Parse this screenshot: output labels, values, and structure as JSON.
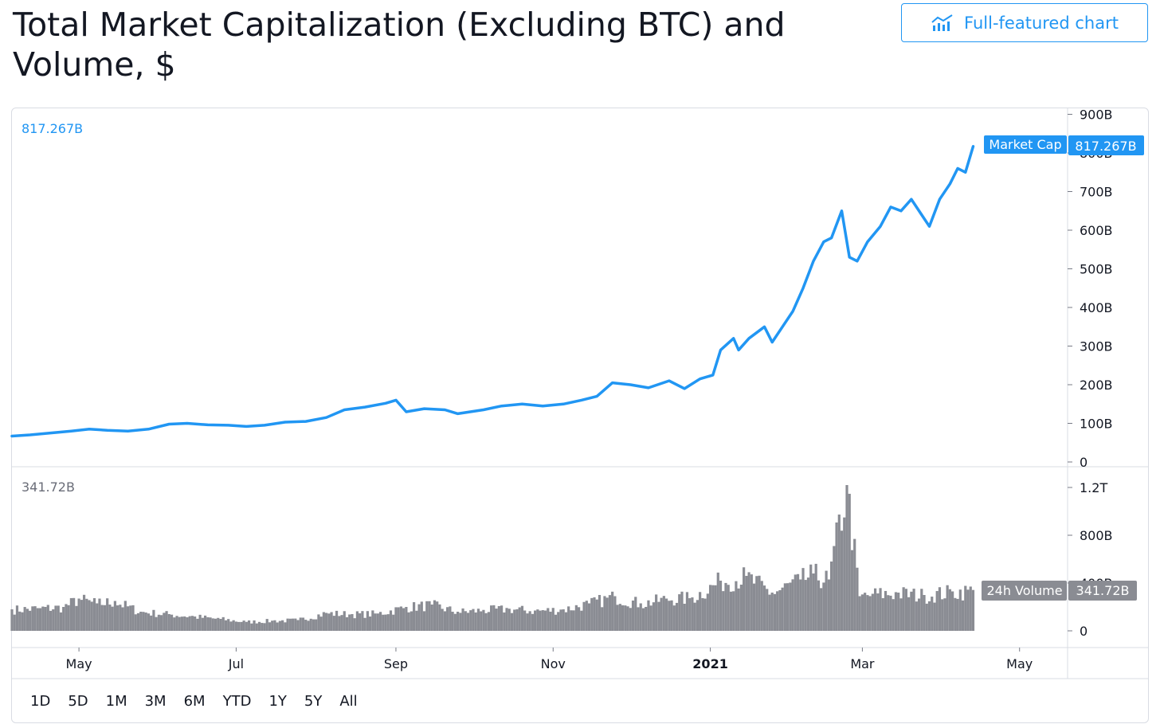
{
  "header": {
    "title": "Total Market Capitalization (Excluding BTC) and Volume, $",
    "full_chart_label": "Full-featured chart",
    "full_chart_icon": "chart-line-icon"
  },
  "range_buttons": [
    "1D",
    "5D",
    "1M",
    "3M",
    "6M",
    "YTD",
    "1Y",
    "5Y",
    "All"
  ],
  "colors": {
    "market_cap": "#2196f3",
    "volume": "#8a8c93",
    "grid": "#e0e3eb",
    "text": "#131722",
    "muted": "#6a6d78"
  },
  "chart_data": [
    {
      "type": "line",
      "title": "Market Cap",
      "legend_value": "817.267B",
      "price_label": "Market Cap",
      "last_value_label": "817.267B",
      "y_ticks": [
        "0",
        "100B",
        "200B",
        "300B",
        "400B",
        "500B",
        "600B",
        "700B",
        "800B",
        "900B"
      ],
      "y_tick_values": [
        0,
        100,
        200,
        300,
        400,
        500,
        600,
        700,
        800,
        900
      ],
      "ylim": [
        0,
        900
      ],
      "unit": "B",
      "x_ticks": [
        "May",
        "Jul",
        "Sep",
        "Nov",
        "2021",
        "Mar",
        "May"
      ],
      "xlim": [
        "2020-04-05",
        "2021-05-15"
      ],
      "series": [
        {
          "name": "Market Cap",
          "points": [
            [
              "2020-04-05",
              67
            ],
            [
              "2020-04-12",
              70
            ],
            [
              "2020-04-20",
              75
            ],
            [
              "2020-04-28",
              80
            ],
            [
              "2020-05-05",
              85
            ],
            [
              "2020-05-12",
              82
            ],
            [
              "2020-05-20",
              80
            ],
            [
              "2020-05-28",
              85
            ],
            [
              "2020-06-05",
              98
            ],
            [
              "2020-06-12",
              100
            ],
            [
              "2020-06-20",
              96
            ],
            [
              "2020-06-28",
              95
            ],
            [
              "2020-07-05",
              92
            ],
            [
              "2020-07-12",
              95
            ],
            [
              "2020-07-20",
              103
            ],
            [
              "2020-07-28",
              105
            ],
            [
              "2020-08-05",
              115
            ],
            [
              "2020-08-12",
              135
            ],
            [
              "2020-08-20",
              142
            ],
            [
              "2020-08-28",
              152
            ],
            [
              "2020-09-01",
              160
            ],
            [
              "2020-09-05",
              130
            ],
            [
              "2020-09-12",
              138
            ],
            [
              "2020-09-20",
              135
            ],
            [
              "2020-09-25",
              125
            ],
            [
              "2020-10-05",
              135
            ],
            [
              "2020-10-12",
              145
            ],
            [
              "2020-10-20",
              150
            ],
            [
              "2020-10-28",
              145
            ],
            [
              "2020-11-05",
              150
            ],
            [
              "2020-11-12",
              160
            ],
            [
              "2020-11-18",
              170
            ],
            [
              "2020-11-24",
              205
            ],
            [
              "2020-12-01",
              200
            ],
            [
              "2020-12-08",
              192
            ],
            [
              "2020-12-16",
              210
            ],
            [
              "2020-12-22",
              190
            ],
            [
              "2020-12-28",
              215
            ],
            [
              "2021-01-02",
              225
            ],
            [
              "2021-01-05",
              290
            ],
            [
              "2021-01-10",
              320
            ],
            [
              "2021-01-12",
              290
            ],
            [
              "2021-01-16",
              320
            ],
            [
              "2021-01-22",
              350
            ],
            [
              "2021-01-25",
              310
            ],
            [
              "2021-01-29",
              350
            ],
            [
              "2021-02-02",
              390
            ],
            [
              "2021-02-06",
              450
            ],
            [
              "2021-02-10",
              520
            ],
            [
              "2021-02-14",
              570
            ],
            [
              "2021-02-17",
              580
            ],
            [
              "2021-02-21",
              650
            ],
            [
              "2021-02-24",
              530
            ],
            [
              "2021-02-27",
              520
            ],
            [
              "2021-03-03",
              570
            ],
            [
              "2021-03-08",
              610
            ],
            [
              "2021-03-12",
              660
            ],
            [
              "2021-03-16",
              650
            ],
            [
              "2021-03-20",
              680
            ],
            [
              "2021-03-24",
              640
            ],
            [
              "2021-03-27",
              610
            ],
            [
              "2021-03-31",
              680
            ],
            [
              "2021-04-04",
              720
            ],
            [
              "2021-04-07",
              760
            ],
            [
              "2021-04-10",
              750
            ],
            [
              "2021-04-13",
              817
            ]
          ]
        }
      ]
    },
    {
      "type": "bar",
      "title": "24h Volume",
      "legend_value": "341.72B",
      "price_label": "24h Volume",
      "last_value_label": "341.72B",
      "y_ticks": [
        "0",
        "400B",
        "800B",
        "1.2T"
      ],
      "y_tick_values": [
        0,
        400,
        800,
        1200
      ],
      "ylim": [
        0,
        1200
      ],
      "unit": "B",
      "series": [
        {
          "name": "24h Volume",
          "points": [
            [
              "2020-04-05",
              180
            ],
            [
              "2020-04-15",
              190
            ],
            [
              "2020-04-25",
              200
            ],
            [
              "2020-05-01",
              270
            ],
            [
              "2020-05-08",
              230
            ],
            [
              "2020-05-15",
              250
            ],
            [
              "2020-05-25",
              160
            ],
            [
              "2020-06-05",
              140
            ],
            [
              "2020-06-15",
              120
            ],
            [
              "2020-06-25",
              100
            ],
            [
              "2020-07-05",
              75
            ],
            [
              "2020-07-15",
              85
            ],
            [
              "2020-07-25",
              90
            ],
            [
              "2020-08-05",
              150
            ],
            [
              "2020-08-15",
              140
            ],
            [
              "2020-08-25",
              145
            ],
            [
              "2020-09-05",
              200
            ],
            [
              "2020-09-15",
              220
            ],
            [
              "2020-09-25",
              160
            ],
            [
              "2020-10-05",
              175
            ],
            [
              "2020-10-15",
              185
            ],
            [
              "2020-10-25",
              170
            ],
            [
              "2020-11-05",
              180
            ],
            [
              "2020-11-15",
              230
            ],
            [
              "2020-11-25",
              290
            ],
            [
              "2020-12-05",
              230
            ],
            [
              "2020-12-15",
              270
            ],
            [
              "2020-12-25",
              280
            ],
            [
              "2021-01-05",
              420
            ],
            [
              "2021-01-15",
              460
            ],
            [
              "2021-01-25",
              320
            ],
            [
              "2021-02-05",
              430
            ],
            [
              "2021-02-10",
              480
            ],
            [
              "2021-02-16",
              430
            ],
            [
              "2021-02-23",
              1220
            ],
            [
              "2021-02-28",
              290
            ],
            [
              "2021-03-05",
              310
            ],
            [
              "2021-03-15",
              320
            ],
            [
              "2021-03-25",
              300
            ],
            [
              "2021-04-05",
              330
            ],
            [
              "2021-04-13",
              342
            ]
          ]
        }
      ]
    }
  ]
}
